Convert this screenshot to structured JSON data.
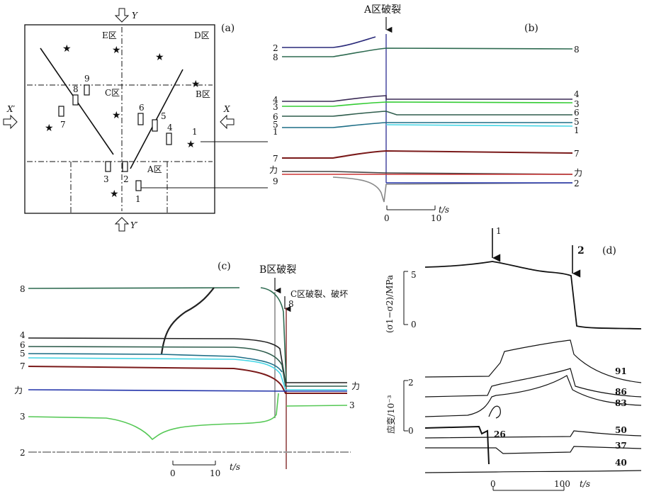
{
  "panel_a": {
    "caption": "(a)",
    "axis_y_top": "Y",
    "axis_y_bottom": "Y′",
    "axis_x_left": "X′",
    "axis_x_right": "X",
    "zone_e": "E区",
    "zone_d": "D区",
    "zone_c": "C区",
    "zone_b": "B区",
    "zone_a": "A区",
    "gauges": [
      "9",
      "8",
      "7",
      "6",
      "5",
      "4",
      "1",
      "3",
      "2",
      "1"
    ]
  },
  "panel_b": {
    "caption": "(b)",
    "event": "A区破裂",
    "left_labels": [
      "2",
      "8",
      "4",
      "3",
      "6",
      "5",
      "1",
      "7",
      "力",
      "9"
    ],
    "right_labels": [
      "8",
      "4",
      "3",
      "6",
      "5",
      "1",
      "7",
      "力",
      "2"
    ],
    "scale_zero": "0",
    "scale_ten": "10",
    "unit": "t/s"
  },
  "panel_c": {
    "caption": "(c)",
    "event_b": "B区破裂",
    "event_c": "C区破裂、破坏",
    "end_label": "8",
    "left_labels": [
      "8",
      "4",
      "6",
      "5",
      "7",
      "力",
      "3",
      "2"
    ],
    "right_labels": [
      "力",
      "3"
    ],
    "scale_zero": "0",
    "scale_ten": "10",
    "unit": "t/s"
  },
  "panel_d": {
    "caption": "(d)",
    "marker_1": "1",
    "marker_2": "2",
    "ylabel_top": "(σ1−σ2)/MPa",
    "tick_top_5": "5",
    "tick_top_0": "0",
    "ylabel_bottom": "应变/10⁻³",
    "tick_bot_2": "2",
    "tick_bot_0": "0",
    "trace_labels": [
      "91",
      "86",
      "83",
      "26",
      "50",
      "37",
      "40"
    ],
    "scale_zero": "0",
    "scale_hundred": "100",
    "unit": "t/s"
  }
}
